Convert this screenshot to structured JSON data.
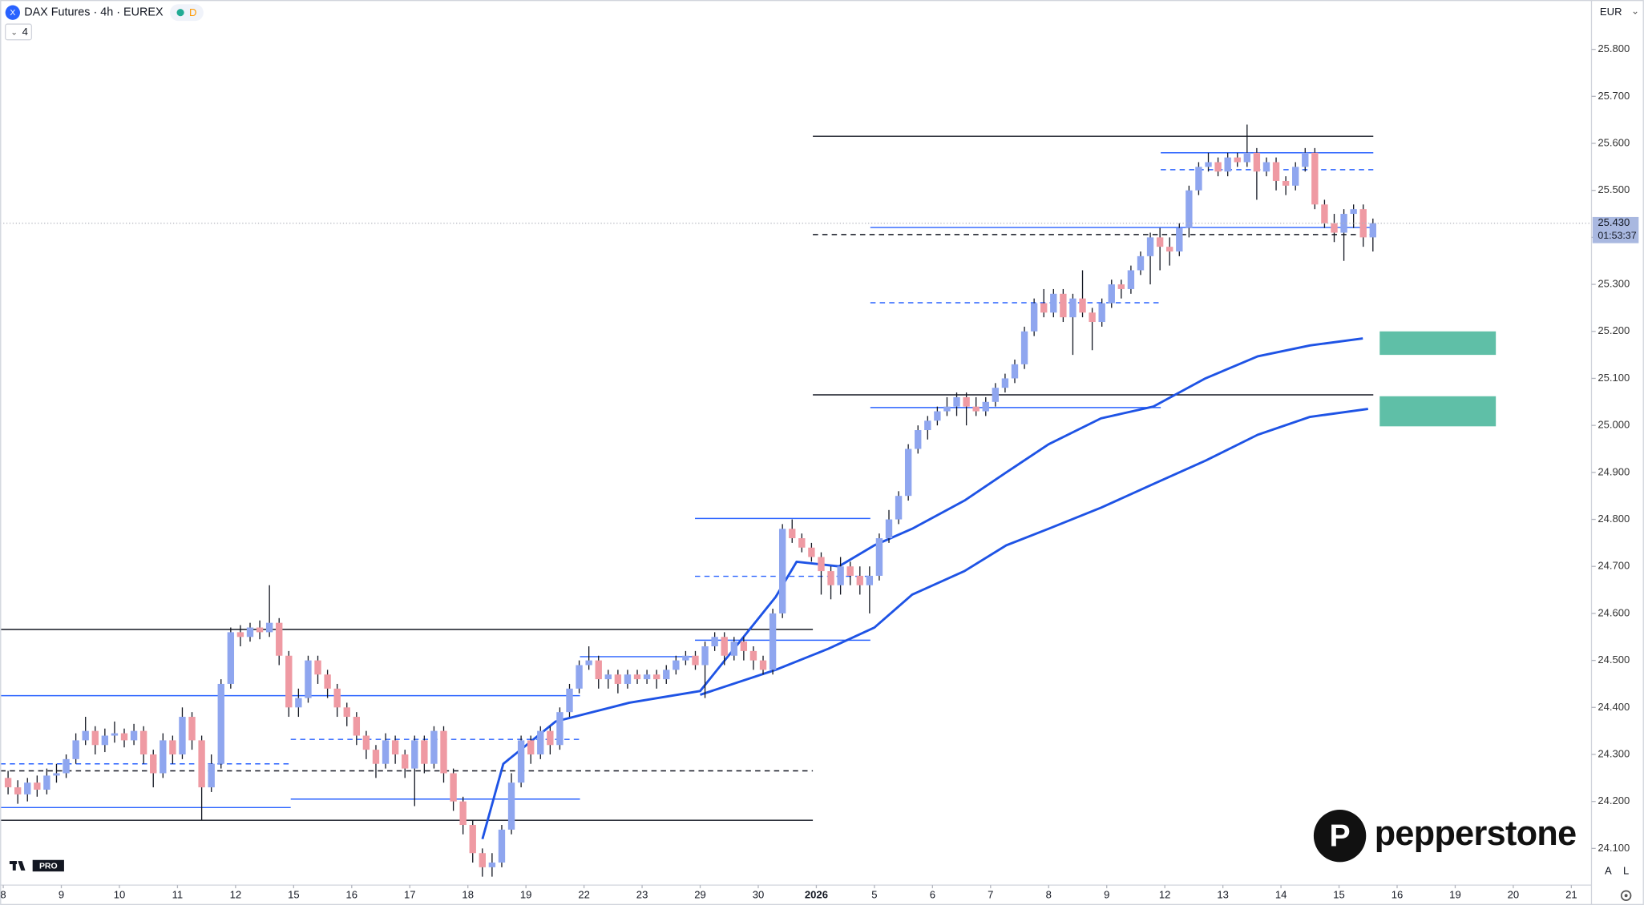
{
  "header": {
    "symbol": "DAX Futures · 4h · EUREX",
    "badge": "D",
    "indicators": 4
  },
  "currency": "EUR",
  "scale_buttons": [
    "A",
    "L"
  ],
  "branding": {
    "broker": "pepperstone",
    "platform": "PRO"
  },
  "chart_data": {
    "type": "candlestick",
    "categories": [
      "8",
      "9",
      "10",
      "11",
      "12",
      "15",
      "16",
      "17",
      "18",
      "19",
      "22",
      "23",
      "29",
      "30",
      "2026",
      "5",
      "6",
      "7",
      "8",
      "9",
      "12",
      "13",
      "14",
      "15",
      "16",
      "19",
      "20",
      "21"
    ],
    "up_color": "#8fa6ef",
    "down_color": "#ef9aa3",
    "ylim": [
      24022,
      25905
    ],
    "yticks": [
      {
        "value": 24100,
        "label": "24.100"
      },
      {
        "value": 24200,
        "label": "24.200"
      },
      {
        "value": 24300,
        "label": "24.300"
      },
      {
        "value": 24400,
        "label": "24.400"
      },
      {
        "value": 24500,
        "label": "24.500"
      },
      {
        "value": 24600,
        "label": "24.600"
      },
      {
        "value": 24700,
        "label": "24.700"
      },
      {
        "value": 24800,
        "label": "24.800"
      },
      {
        "value": 24900,
        "label": "24.900"
      },
      {
        "value": 25000,
        "label": "25.000"
      },
      {
        "value": 25100,
        "label": "25.100"
      },
      {
        "value": 25200,
        "label": "25.200"
      },
      {
        "value": 25300,
        "label": "25.300"
      },
      {
        "value": 25400,
        "label": "25.400"
      },
      {
        "value": 25500,
        "label": "25.500"
      },
      {
        "value": 25600,
        "label": "25.600"
      },
      {
        "value": 25700,
        "label": "25.700"
      },
      {
        "value": 25800,
        "label": "25.800"
      }
    ],
    "last_price": {
      "value": 25430,
      "label": "25.430"
    },
    "countdown": "01:53:37",
    "candles": [
      [
        24250,
        24265,
        24215,
        24230
      ],
      [
        24230,
        24245,
        24195,
        24215
      ],
      [
        24215,
        24250,
        24200,
        24240
      ],
      [
        24240,
        24255,
        24210,
        24225
      ],
      [
        24225,
        24270,
        24215,
        24255
      ],
      [
        24255,
        24280,
        24240,
        24260
      ],
      [
        24260,
        24300,
        24250,
        24290
      ],
      [
        24290,
        24345,
        24280,
        24330
      ],
      [
        24330,
        24380,
        24320,
        24350
      ],
      [
        24350,
        24360,
        24300,
        24320
      ],
      [
        24320,
        24355,
        24305,
        24340
      ],
      [
        24340,
        24370,
        24325,
        24345
      ],
      [
        24345,
        24355,
        24315,
        24330
      ],
      [
        24330,
        24365,
        24320,
        24350
      ],
      [
        24350,
        24360,
        24280,
        24300
      ],
      [
        24300,
        24310,
        24230,
        24260
      ],
      [
        24260,
        24345,
        24250,
        24330
      ],
      [
        24330,
        24340,
        24280,
        24300
      ],
      [
        24300,
        24400,
        24290,
        24380
      ],
      [
        24380,
        24390,
        24310,
        24330
      ],
      [
        24330,
        24340,
        24160,
        24230
      ],
      [
        24230,
        24300,
        24220,
        24280
      ],
      [
        24280,
        24460,
        24270,
        24450
      ],
      [
        24450,
        24570,
        24440,
        24560
      ],
      [
        24560,
        24575,
        24530,
        24550
      ],
      [
        24550,
        24580,
        24540,
        24570
      ],
      [
        24570,
        24585,
        24545,
        24560
      ],
      [
        24560,
        24660,
        24550,
        24580
      ],
      [
        24580,
        24590,
        24490,
        24510
      ],
      [
        24510,
        24520,
        24380,
        24400
      ],
      [
        24400,
        24440,
        24380,
        24420
      ],
      [
        24420,
        24510,
        24410,
        24500
      ],
      [
        24500,
        24510,
        24450,
        24470
      ],
      [
        24470,
        24480,
        24420,
        24440
      ],
      [
        24440,
        24450,
        24380,
        24400
      ],
      [
        24400,
        24410,
        24360,
        24380
      ],
      [
        24380,
        24390,
        24320,
        24340
      ],
      [
        24340,
        24350,
        24290,
        24310
      ],
      [
        24310,
        24320,
        24250,
        24280
      ],
      [
        24280,
        24345,
        24270,
        24330
      ],
      [
        24330,
        24340,
        24280,
        24300
      ],
      [
        24300,
        24310,
        24250,
        24270
      ],
      [
        24270,
        24340,
        24190,
        24330
      ],
      [
        24330,
        24340,
        24260,
        24280
      ],
      [
        24280,
        24360,
        24270,
        24350
      ],
      [
        24350,
        24360,
        24240,
        24260
      ],
      [
        24260,
        24270,
        24180,
        24200
      ],
      [
        24200,
        24210,
        24130,
        24150
      ],
      [
        24150,
        24160,
        24070,
        24090
      ],
      [
        24090,
        24100,
        24040,
        24060
      ],
      [
        24060,
        24090,
        24040,
        24070
      ],
      [
        24070,
        24150,
        24060,
        24140
      ],
      [
        24140,
        24260,
        24130,
        24240
      ],
      [
        24240,
        24340,
        24230,
        24330
      ],
      [
        24330,
        24340,
        24280,
        24300
      ],
      [
        24300,
        24360,
        24290,
        24350
      ],
      [
        24350,
        24360,
        24300,
        24320
      ],
      [
        24320,
        24400,
        24310,
        24390
      ],
      [
        24390,
        24450,
        24380,
        24440
      ],
      [
        24440,
        24500,
        24430,
        24490
      ],
      [
        24490,
        24530,
        24480,
        24500
      ],
      [
        24500,
        24510,
        24440,
        24460
      ],
      [
        24460,
        24480,
        24440,
        24470
      ],
      [
        24470,
        24480,
        24430,
        24450
      ],
      [
        24450,
        24480,
        24440,
        24470
      ],
      [
        24470,
        24480,
        24450,
        24460
      ],
      [
        24460,
        24480,
        24450,
        24470
      ],
      [
        24470,
        24480,
        24440,
        24460
      ],
      [
        24460,
        24490,
        24450,
        24480
      ],
      [
        24480,
        24510,
        24470,
        24500
      ],
      [
        24500,
        24520,
        24490,
        24510
      ],
      [
        24510,
        24520,
        24480,
        24490
      ],
      [
        24490,
        24540,
        24420,
        24530
      ],
      [
        24530,
        24560,
        24520,
        24550
      ],
      [
        24550,
        24560,
        24490,
        24510
      ],
      [
        24510,
        24550,
        24500,
        24540
      ],
      [
        24540,
        24550,
        24500,
        24520
      ],
      [
        24520,
        24530,
        24480,
        24500
      ],
      [
        24500,
        24510,
        24470,
        24480
      ],
      [
        24480,
        24610,
        24470,
        24600
      ],
      [
        24600,
        24790,
        24590,
        24780
      ],
      [
        24780,
        24800,
        24750,
        24760
      ],
      [
        24760,
        24770,
        24730,
        24740
      ],
      [
        24740,
        24750,
        24710,
        24720
      ],
      [
        24720,
        24730,
        24640,
        24690
      ],
      [
        24690,
        24700,
        24630,
        24660
      ],
      [
        24660,
        24720,
        24640,
        24700
      ],
      [
        24700,
        24710,
        24660,
        24680
      ],
      [
        24680,
        24700,
        24640,
        24660
      ],
      [
        24660,
        24700,
        24600,
        24680
      ],
      [
        24680,
        24770,
        24670,
        24760
      ],
      [
        24760,
        24820,
        24750,
        24800
      ],
      [
        24800,
        24860,
        24790,
        24850
      ],
      [
        24850,
        24960,
        24840,
        24950
      ],
      [
        24950,
        25000,
        24940,
        24990
      ],
      [
        24990,
        25020,
        24970,
        25010
      ],
      [
        25010,
        25040,
        25000,
        25030
      ],
      [
        25030,
        25060,
        25020,
        25040
      ],
      [
        25040,
        25070,
        25020,
        25060
      ],
      [
        25060,
        25070,
        25000,
        25040
      ],
      [
        25040,
        25060,
        25020,
        25030
      ],
      [
        25030,
        25060,
        25020,
        25050
      ],
      [
        25050,
        25090,
        25040,
        25080
      ],
      [
        25080,
        25110,
        25070,
        25100
      ],
      [
        25100,
        25140,
        25090,
        25130
      ],
      [
        25130,
        25210,
        25120,
        25200
      ],
      [
        25200,
        25270,
        25190,
        25260
      ],
      [
        25260,
        25290,
        25230,
        25240
      ],
      [
        25240,
        25290,
        25230,
        25280
      ],
      [
        25280,
        25290,
        25220,
        25230
      ],
      [
        25230,
        25280,
        25150,
        25270
      ],
      [
        25270,
        25330,
        25230,
        25240
      ],
      [
        25240,
        25250,
        25160,
        25220
      ],
      [
        25220,
        25270,
        25210,
        25260
      ],
      [
        25260,
        25310,
        25250,
        25300
      ],
      [
        25300,
        25310,
        25270,
        25290
      ],
      [
        25290,
        25340,
        25280,
        25330
      ],
      [
        25330,
        25370,
        25320,
        25360
      ],
      [
        25360,
        25410,
        25300,
        25400
      ],
      [
        25400,
        25420,
        25330,
        25380
      ],
      [
        25380,
        25400,
        25340,
        25370
      ],
      [
        25370,
        25430,
        25360,
        25420
      ],
      [
        25420,
        25510,
        25400,
        25500
      ],
      [
        25500,
        25560,
        25490,
        25550
      ],
      [
        25550,
        25580,
        25540,
        25560
      ],
      [
        25560,
        25570,
        25530,
        25540
      ],
      [
        25540,
        25580,
        25530,
        25570
      ],
      [
        25570,
        25580,
        25550,
        25560
      ],
      [
        25560,
        25640,
        25550,
        25580
      ],
      [
        25580,
        25590,
        25480,
        25540
      ],
      [
        25540,
        25570,
        25530,
        25560
      ],
      [
        25560,
        25570,
        25500,
        25520
      ],
      [
        25520,
        25530,
        25490,
        25510
      ],
      [
        25510,
        25560,
        25500,
        25550
      ],
      [
        25550,
        25590,
        25540,
        25580
      ],
      [
        25580,
        25590,
        25460,
        25470
      ],
      [
        25470,
        25480,
        25420,
        25430
      ],
      [
        25430,
        25450,
        25390,
        25410
      ],
      [
        25410,
        25460,
        25350,
        25450
      ],
      [
        25450,
        25470,
        25420,
        25460
      ],
      [
        25460,
        25470,
        25380,
        25400
      ],
      [
        25400,
        25440,
        25370,
        25430
      ]
    ],
    "levels": [
      {
        "value": 25615,
        "from": 13.94,
        "to": 23.59,
        "color": "#131722",
        "dashed": false
      },
      {
        "value": 25580,
        "from": 19.93,
        "to": 23.59,
        "color": "#2962ff",
        "dashed": false
      },
      {
        "value": 25544,
        "from": 19.93,
        "to": 23.59,
        "color": "#2962ff",
        "dashed": true
      },
      {
        "value": 25421,
        "from": 14.93,
        "to": 23.59,
        "color": "#2962ff",
        "dashed": false
      },
      {
        "value": 25406,
        "from": 13.94,
        "to": 23.59,
        "color": "#131722",
        "dashed": true
      },
      {
        "value": 25261,
        "from": 14.93,
        "to": 19.93,
        "color": "#2962ff",
        "dashed": true
      },
      {
        "value": 25065,
        "from": 13.94,
        "to": 23.59,
        "color": "#131722",
        "dashed": false
      },
      {
        "value": 25038,
        "from": 14.93,
        "to": 19.93,
        "color": "#2962ff",
        "dashed": false
      },
      {
        "value": 24802,
        "from": 11.91,
        "to": 14.93,
        "color": "#2962ff",
        "dashed": false
      },
      {
        "value": 24679,
        "from": 11.91,
        "to": 14.93,
        "color": "#2962ff",
        "dashed": true
      },
      {
        "value": 24543,
        "from": 11.91,
        "to": 14.93,
        "color": "#2962ff",
        "dashed": false
      },
      {
        "value": 24566,
        "from": -0.05,
        "to": 13.94,
        "color": "#131722",
        "dashed": false
      },
      {
        "value": 24508,
        "from": 9.93,
        "to": 11.91,
        "color": "#2962ff",
        "dashed": false
      },
      {
        "value": 24425,
        "from": -0.05,
        "to": 9.93,
        "color": "#2962ff",
        "dashed": false
      },
      {
        "value": 24332,
        "from": 4.95,
        "to": 9.93,
        "color": "#2962ff",
        "dashed": true
      },
      {
        "value": 24280,
        "from": -0.05,
        "to": 4.95,
        "color": "#2962ff",
        "dashed": true
      },
      {
        "value": 24265,
        "from": -0.05,
        "to": 13.94,
        "color": "#131722",
        "dashed": true
      },
      {
        "value": 24187,
        "from": -0.05,
        "to": 4.95,
        "color": "#2962ff",
        "dashed": false
      },
      {
        "value": 24205,
        "from": 4.95,
        "to": 9.93,
        "color": "#2962ff",
        "dashed": false
      },
      {
        "value": 24160,
        "from": -0.05,
        "to": 13.94,
        "color": "#131722",
        "dashed": false
      }
    ],
    "lines": [
      {
        "color": "#1e53e5",
        "x": [
          8.25,
          8.61,
          9.51,
          10.78,
          12.0,
          13.3,
          13.66,
          14.39,
          15.0,
          15.65,
          16.55,
          17.27,
          18.0,
          18.9,
          19.8,
          20.7,
          21.6,
          22.5,
          23.41
        ],
        "values": [
          24120,
          24280,
          24370,
          24410,
          24435,
          24635,
          24710,
          24700,
          24745,
          24780,
          24840,
          24900,
          24960,
          25015,
          25040,
          25100,
          25147,
          25170,
          25185
        ]
      },
      {
        "color": "#1e53e5",
        "x": [
          12.0,
          13.3,
          14.21,
          15.0,
          15.65,
          16.55,
          17.27,
          18.0,
          18.9,
          19.8,
          20.7,
          21.6,
          22.5,
          23.5
        ],
        "values": [
          24427,
          24480,
          24525,
          24570,
          24640,
          24690,
          24745,
          24780,
          24825,
          24875,
          24925,
          24980,
          25018,
          25035
        ]
      }
    ],
    "zones": [
      {
        "from": 23.7,
        "to": 25.7,
        "low": 25150,
        "high": 25200,
        "color": "#5fbfa7"
      },
      {
        "from": 23.7,
        "to": 25.7,
        "low": 24998,
        "high": 25062,
        "color": "#5fbfa7"
      }
    ]
  }
}
